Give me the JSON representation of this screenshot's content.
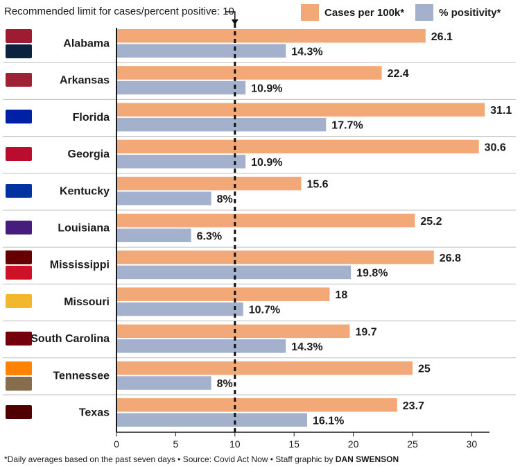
{
  "chart_data": {
    "type": "bar",
    "orientation": "horizontal",
    "annotation": "Recommended limit for cases/percent positive: 10",
    "reference_line": 10,
    "categories": [
      "Alabama",
      "Arkansas",
      "Florida",
      "Georgia",
      "Kentucky",
      "Louisiana",
      "Mississippi",
      "Missouri",
      "South Carolina",
      "Tennessee",
      "Texas"
    ],
    "series": [
      {
        "name": "Cases per 100k*",
        "color": "#f2a877",
        "values": [
          26.1,
          22.4,
          31.1,
          30.6,
          15.6,
          25.2,
          26.8,
          18,
          19.7,
          25,
          23.7
        ],
        "labels": [
          "26.1",
          "22.4",
          "31.1",
          "30.6",
          "15.6",
          "25.2",
          "26.8",
          "18",
          "19.7",
          "25",
          "23.7"
        ]
      },
      {
        "name": "% positivity*",
        "color": "#a3b1cc",
        "values": [
          14.3,
          10.9,
          17.7,
          10.9,
          8,
          6.3,
          19.8,
          10.7,
          14.3,
          8,
          16.1
        ],
        "labels": [
          "14.3%",
          "10.9%",
          "17.7%",
          "10.9%",
          "8%",
          "6.3%",
          "19.8%",
          "10.7%",
          "14.3%",
          "8%",
          "16.1%"
        ]
      }
    ],
    "xlim": [
      0,
      31.5
    ],
    "xticks": [
      0,
      5,
      10,
      15,
      20,
      25,
      30
    ],
    "grid": false,
    "legend_position": "top-right"
  },
  "footnote": {
    "text": "*Daily averages based on the past seven days • Source: Covid Act Now • Staff graphic by ",
    "byline": "DAN SWENSON"
  },
  "logos": [
    {
      "icon": "alabama-logo-icon",
      "color": "#9e1b32"
    },
    {
      "icon": "auburn-logo-icon",
      "color": "#0c2340"
    },
    {
      "icon": "arkansas-logo-icon",
      "color": "#9d2235"
    },
    {
      "icon": "florida-logo-icon",
      "color": "#0021a5"
    },
    {
      "icon": "georgia-logo-icon",
      "color": "#ba0c2f"
    },
    {
      "icon": "kentucky-logo-icon",
      "color": "#0033a0"
    },
    {
      "icon": "lsu-logo-icon",
      "color": "#461d7c"
    },
    {
      "icon": "mississippi-state-logo-icon",
      "color": "#660000"
    },
    {
      "icon": "ole-miss-logo-icon",
      "color": "#ce1126"
    },
    {
      "icon": "missouri-logo-icon",
      "color": "#f1b82d"
    },
    {
      "icon": "south-carolina-logo-icon",
      "color": "#73000a"
    },
    {
      "icon": "tennessee-logo-icon",
      "color": "#ff8200"
    },
    {
      "icon": "vanderbilt-logo-icon",
      "color": "#866d4b"
    },
    {
      "icon": "texas-am-logo-icon",
      "color": "#500000"
    }
  ]
}
